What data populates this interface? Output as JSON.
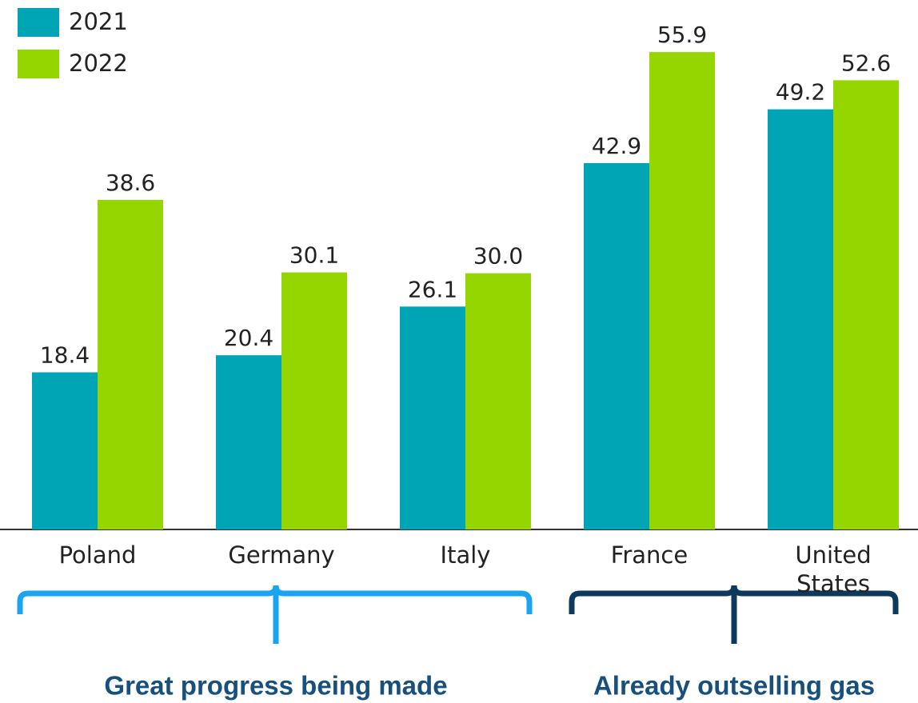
{
  "chart_data": {
    "type": "bar",
    "categories": [
      "Poland",
      "Germany",
      "Italy",
      "France",
      "United States"
    ],
    "series": [
      {
        "name": "2021",
        "color": "#00a5b5",
        "values": [
          18.4,
          20.4,
          26.1,
          42.9,
          49.2
        ],
        "value_labels": [
          "18.4",
          "20.4",
          "26.1",
          "42.9",
          "49.2"
        ]
      },
      {
        "name": "2022",
        "color": "#95d600",
        "values": [
          38.6,
          30.1,
          30.0,
          55.9,
          52.6
        ],
        "value_labels": [
          "38.6",
          "30.1",
          "30.0",
          "55.9",
          "52.6"
        ]
      }
    ],
    "ylim": [
      0,
      62
    ],
    "annotations": [
      "Great progress being made",
      "Already outselling gas"
    ]
  }
}
